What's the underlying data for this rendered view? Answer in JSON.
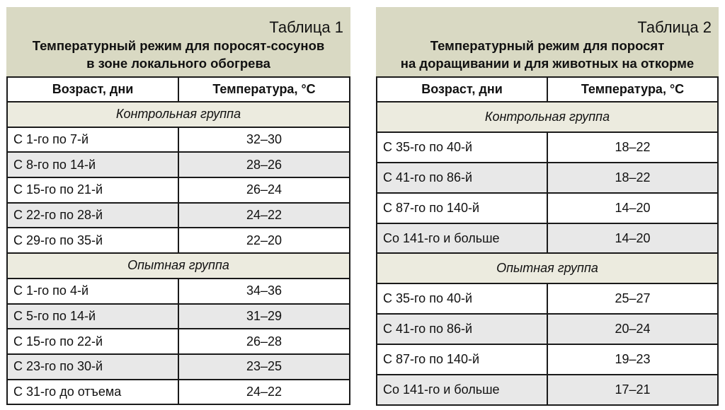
{
  "table1": {
    "number": "Таблица 1",
    "title_line1": "Температурный режим для поросят-сосунов",
    "title_line2": "в зоне локального обогрева",
    "headers": [
      "Возраст, дни",
      "Температура, °С"
    ],
    "groups": [
      {
        "label": "Контрольная группа",
        "rows": [
          [
            "С 1-го по 7-й",
            "32–30"
          ],
          [
            "С 8-го по 14-й",
            "28–26"
          ],
          [
            "С 15-го по 21-й",
            "26–24"
          ],
          [
            "С 22-го по 28-й",
            "24–22"
          ],
          [
            "С 29-го по 35-й",
            "22–20"
          ]
        ]
      },
      {
        "label": "Опытная группа",
        "rows": [
          [
            "С 1-го по 4-й",
            "34–36"
          ],
          [
            "С 5-го по 14-й",
            "31–29"
          ],
          [
            "С 15-го по 22-й",
            "26–28"
          ],
          [
            "С 23-го по 30-й",
            "23–25"
          ],
          [
            "С 31-го до отъема",
            "24–22"
          ]
        ]
      }
    ]
  },
  "table2": {
    "number": "Таблица 2",
    "title_line1": "Температурный режим для поросят",
    "title_line2": "на доращивании и для животных на откорме",
    "headers": [
      "Возраст, дни",
      "Температура, °С"
    ],
    "groups": [
      {
        "label": "Контрольная группа",
        "rows": [
          [
            "С 35-го по 40-й",
            "18–22"
          ],
          [
            "С 41-го по 86-й",
            "18–22"
          ],
          [
            "С 87-го по 140-й",
            "14–20"
          ],
          [
            "Со 141-го и больше",
            "14–20"
          ]
        ]
      },
      {
        "label": "Опытная группа",
        "rows": [
          [
            "С 35-го по 40-й",
            "25–27"
          ],
          [
            "С 41-го по 86-й",
            "20–24"
          ],
          [
            "С 87-го по 140-й",
            "19–23"
          ],
          [
            "Со 141-го и больше",
            "17–21"
          ]
        ]
      }
    ]
  },
  "colors": {
    "caption_bg": "#d9d9c3",
    "group_row_bg": "#ecebdf",
    "alt_row_bg": "#e8e8e8",
    "border": "#1a1a1a"
  }
}
